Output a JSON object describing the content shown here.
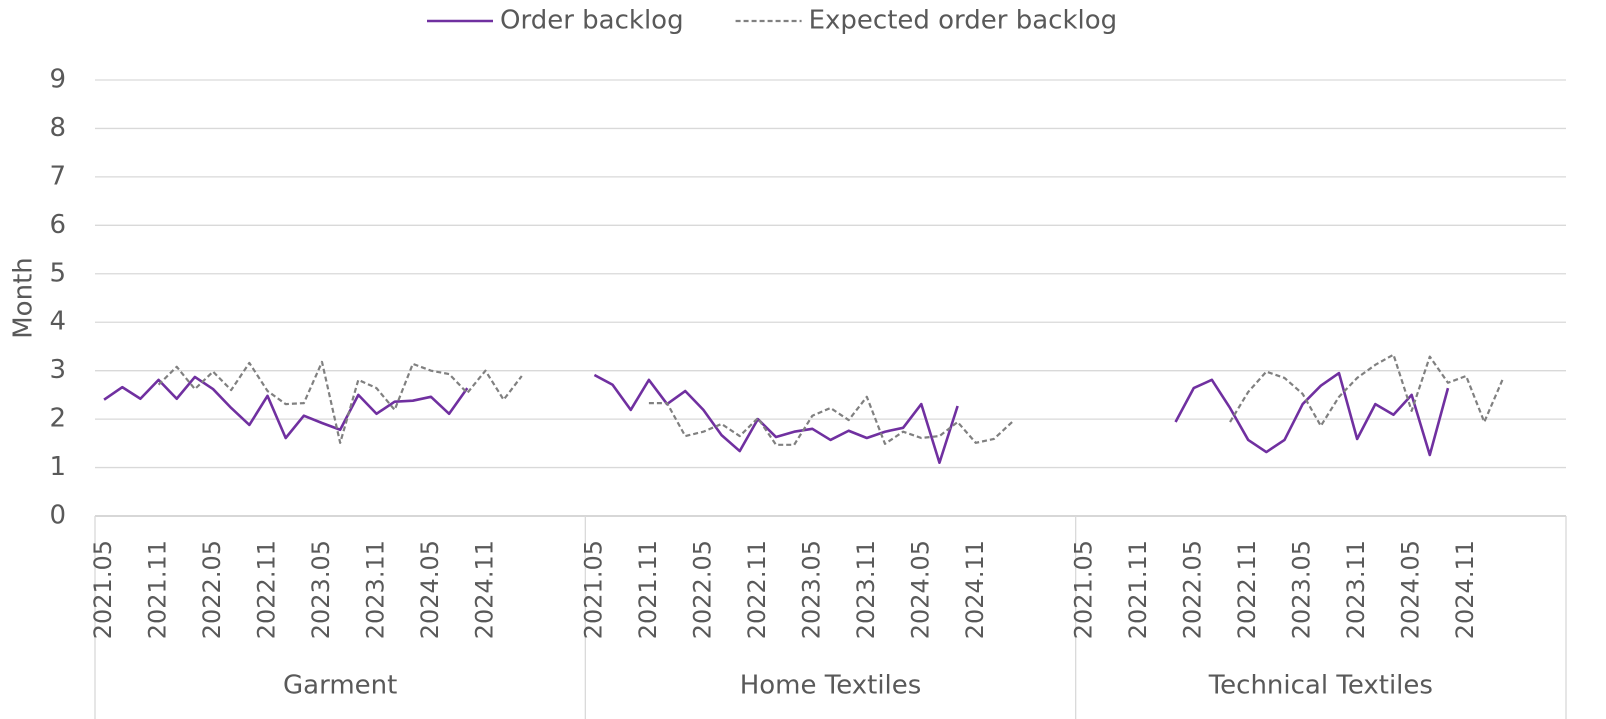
{
  "chart_data": {
    "type": "line",
    "y_axis_label": "Month",
    "groups": [
      "Garment",
      "Home Textiles",
      "Technical Textiles"
    ],
    "categories": [
      "2021.05",
      null,
      null,
      "2021.11",
      null,
      null,
      "2022.05",
      null,
      null,
      "2022.11",
      null,
      null,
      "2023.05",
      null,
      null,
      "2023.11",
      null,
      null,
      "2024.05",
      null,
      null,
      "2024.11",
      null,
      null,
      null,
      null,
      null,
      "2021.05",
      null,
      null,
      "2021.11",
      null,
      null,
      "2022.05",
      null,
      null,
      "2022.11",
      null,
      null,
      "2023.05",
      null,
      null,
      "2023.11",
      null,
      null,
      "2024.05",
      null,
      null,
      "2024.11",
      null,
      null,
      null,
      null,
      null,
      "2021.05",
      null,
      null,
      "2021.11",
      null,
      null,
      "2022.05",
      null,
      null,
      "2022.11",
      null,
      null,
      "2023.05",
      null,
      null,
      "2023.11",
      null,
      null,
      "2024.05",
      null,
      null,
      "2024.11",
      null,
      null,
      null,
      null,
      null
    ],
    "series": [
      {
        "name": "Order backlog",
        "color": "#7030a0",
        "dash": "solid",
        "values": [
          2.4,
          2.66,
          2.42,
          2.81,
          2.42,
          2.87,
          2.62,
          2.23,
          1.88,
          2.48,
          1.61,
          2.07,
          1.92,
          1.78,
          2.5,
          2.11,
          2.36,
          2.38,
          2.46,
          2.11,
          2.64,
          null,
          null,
          null,
          null,
          null,
          null,
          2.91,
          2.71,
          2.19,
          2.81,
          2.31,
          2.58,
          2.19,
          1.67,
          1.34,
          2.0,
          1.63,
          1.74,
          1.8,
          1.57,
          1.76,
          1.61,
          1.74,
          1.82,
          2.31,
          1.1,
          2.27,
          null,
          null,
          null,
          null,
          null,
          null,
          null,
          null,
          null,
          null,
          null,
          1.94,
          2.64,
          2.81,
          2.23,
          1.57,
          1.32,
          1.57,
          2.31,
          2.69,
          2.95,
          1.59,
          2.31,
          2.09,
          2.5,
          1.26,
          2.64,
          null,
          null,
          null,
          null,
          null,
          null
        ]
      },
      {
        "name": "Expected order backlog",
        "color": "#808080",
        "dash": "dashed",
        "values": [
          null,
          null,
          null,
          2.71,
          3.08,
          2.62,
          2.98,
          2.6,
          3.16,
          2.58,
          2.31,
          2.33,
          3.18,
          1.51,
          2.81,
          2.64,
          2.19,
          3.14,
          3.0,
          2.93,
          2.54,
          3.0,
          2.4,
          2.89,
          null,
          null,
          null,
          null,
          null,
          null,
          2.33,
          2.33,
          1.65,
          1.74,
          1.9,
          1.65,
          2.02,
          1.47,
          1.47,
          2.07,
          2.23,
          1.98,
          2.46,
          1.49,
          1.74,
          1.61,
          1.65,
          1.94,
          1.51,
          1.59,
          1.94,
          null,
          null,
          null,
          null,
          null,
          null,
          null,
          null,
          null,
          null,
          null,
          1.94,
          2.56,
          2.98,
          2.85,
          2.52,
          1.86,
          2.46,
          2.85,
          3.12,
          3.33,
          2.17,
          3.29,
          2.75,
          2.89,
          1.94,
          2.81,
          null,
          null,
          null
        ]
      }
    ],
    "ylim": [
      0,
      9
    ],
    "yticks": [
      0,
      1,
      2,
      3,
      4,
      5,
      6,
      7,
      8,
      9
    ],
    "grid": true,
    "legend": "top"
  }
}
